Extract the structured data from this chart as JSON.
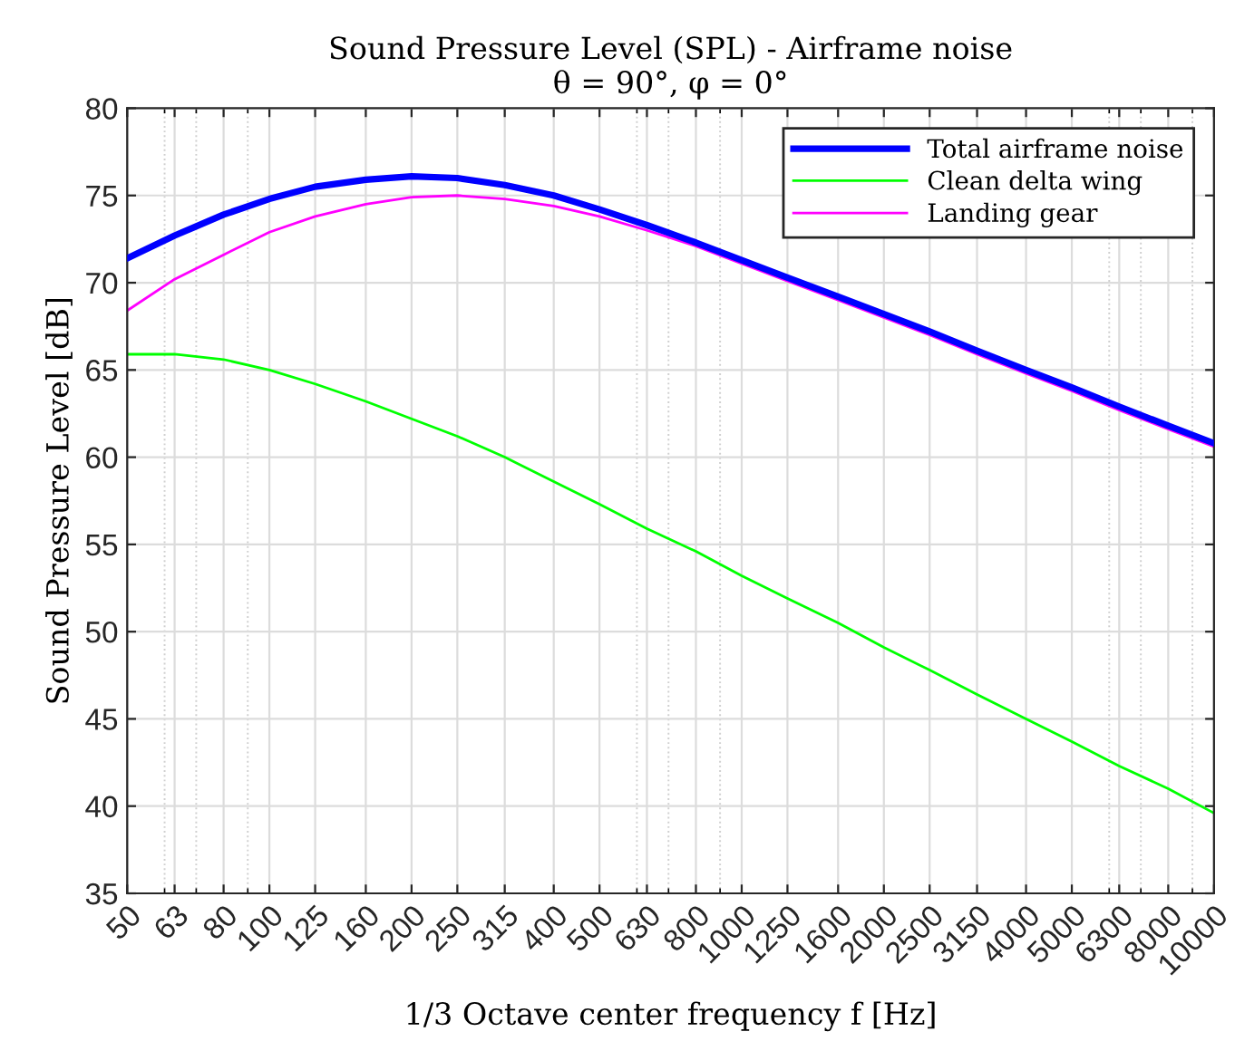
{
  "chart_data": {
    "type": "line",
    "title": "Sound Pressure Level (SPL) - Airframe noise",
    "subtitle": "θ = 90°, φ = 0°",
    "xlabel": "1/3 Octave center frequency f [Hz]",
    "ylabel": "Sound Pressure Level [dB]",
    "x": [
      50,
      63,
      80,
      100,
      125,
      160,
      200,
      250,
      315,
      400,
      500,
      630,
      800,
      1000,
      1250,
      1600,
      2000,
      2500,
      3150,
      4000,
      5000,
      6300,
      8000,
      10000
    ],
    "series": [
      {
        "name": "Total airframe noise",
        "color": "#0000ff",
        "values": [
          71.4,
          72.7,
          73.9,
          74.8,
          75.5,
          75.9,
          76.1,
          76.0,
          75.6,
          75.0,
          74.2,
          73.3,
          72.3,
          71.3,
          70.3,
          69.2,
          68.2,
          67.2,
          66.1,
          65.0,
          64.0,
          62.9,
          61.8,
          60.8
        ]
      },
      {
        "name": "Clean delta wing",
        "color": "#00ff00",
        "values": [
          65.9,
          65.9,
          65.6,
          65.0,
          64.2,
          63.2,
          62.2,
          61.2,
          60.0,
          58.6,
          57.3,
          55.9,
          54.6,
          53.2,
          51.9,
          50.5,
          49.1,
          47.8,
          46.4,
          45.0,
          43.7,
          42.3,
          41.0,
          39.6
        ]
      },
      {
        "name": "Landing gear",
        "color": "#ff00ff",
        "values": [
          68.4,
          70.2,
          71.6,
          72.9,
          73.8,
          74.5,
          74.9,
          75.0,
          74.8,
          74.4,
          73.8,
          73.0,
          72.1,
          71.1,
          70.1,
          69.0,
          68.0,
          67.0,
          65.9,
          64.8,
          63.8,
          62.7,
          61.6,
          60.6
        ]
      }
    ],
    "log": "x",
    "xlim": [
      50,
      10000
    ],
    "xticks": [
      50,
      63,
      80,
      100,
      125,
      160,
      200,
      250,
      315,
      400,
      500,
      630,
      800,
      1000,
      1250,
      1600,
      2000,
      2500,
      3150,
      4000,
      5000,
      6300,
      8000,
      10000
    ],
    "ylim": [
      35,
      80
    ],
    "yticks": [
      35,
      40,
      45,
      50,
      55,
      60,
      65,
      70,
      75,
      80
    ],
    "grid": true,
    "legend": "top right",
    "marker": "none",
    "line_style": "solid"
  }
}
